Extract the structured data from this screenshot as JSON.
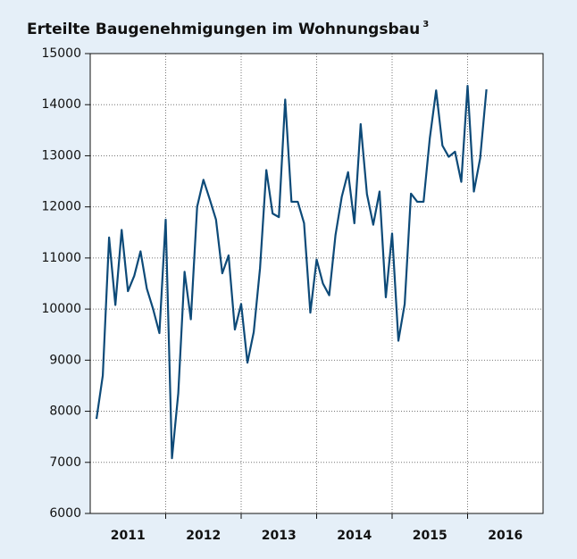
{
  "chart_data": {
    "type": "line",
    "title": "Erteilte Baugenehmigungen im Wohnungsbau",
    "title_footnote": "3",
    "categories": [
      null,
      null,
      null,
      null,
      null,
      "2011",
      null,
      null,
      null,
      null,
      null,
      null,
      null,
      null,
      null,
      null,
      null,
      "2012",
      null,
      null,
      null,
      null,
      null,
      null,
      null,
      null,
      null,
      null,
      null,
      "2013",
      null,
      null,
      null,
      null,
      null,
      null,
      null,
      null,
      null,
      null,
      null,
      "2014",
      null,
      null,
      null,
      null,
      null,
      null,
      null,
      null,
      null,
      null,
      null,
      "2015",
      null,
      null,
      null,
      null,
      null,
      null,
      null,
      null,
      null,
      null,
      null,
      "2016",
      null,
      null,
      null,
      null,
      null,
      null
    ],
    "values": [
      7850,
      8700,
      11400,
      10080,
      11550,
      10350,
      10650,
      11130,
      10400,
      10000,
      9530,
      11750,
      7080,
      8350,
      10730,
      9800,
      12000,
      12530,
      12150,
      11750,
      10700,
      11050,
      9600,
      10100,
      8950,
      9550,
      10800,
      12720,
      11870,
      11800,
      14100,
      12100,
      12100,
      11680,
      9930,
      10970,
      10500,
      10270,
      11450,
      12200,
      12680,
      11680,
      13620,
      12250,
      11650,
      12300,
      10230,
      11480,
      9380,
      10100,
      12260,
      12100,
      12100,
      13350,
      14280,
      13200,
      12980,
      13080,
      12490,
      14370,
      12300,
      12950,
      14300,
      null,
      null,
      null,
      null,
      null,
      null,
      null,
      null,
      null
    ],
    "color": "#0d4a78",
    "ylim": [
      6000,
      15000
    ],
    "yticks": [
      6000,
      7000,
      8000,
      9000,
      10000,
      11000,
      12000,
      13000,
      14000,
      15000
    ],
    "grid": true
  }
}
